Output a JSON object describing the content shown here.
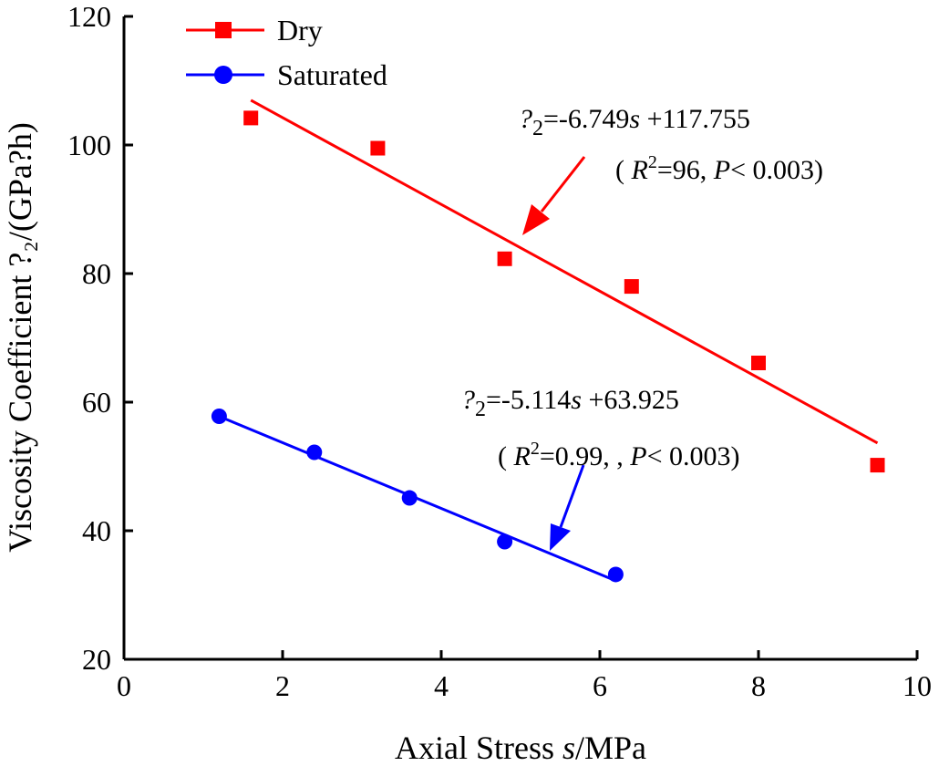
{
  "chart_data": {
    "type": "scatter",
    "xlabel_prefix": "Axial Stress ",
    "xlabel_var": "s",
    "xlabel_suffix": "/MPa",
    "ylabel": "Viscosity Coefficient ?₂/(GPa?h)",
    "xlim": [
      0,
      10
    ],
    "ylim": [
      20,
      120
    ],
    "xticks": [
      0,
      2,
      4,
      6,
      8,
      10
    ],
    "yticks": [
      20,
      40,
      60,
      80,
      100,
      120
    ],
    "legend_position": "top-left",
    "series": [
      {
        "name": "Dry",
        "color": "#ff0000",
        "marker": "square",
        "x": [
          1.6,
          3.2,
          4.8,
          6.4,
          8.0,
          9.5
        ],
        "y": [
          104.2,
          99.5,
          82.3,
          78.0,
          66.1,
          50.2
        ],
        "fit": {
          "slope": -6.749,
          "intercept": 117.755,
          "x_range": [
            1.6,
            9.5
          ]
        },
        "equation": {
          "lhs": "?",
          "sub": "2",
          "mid": "=-6.749",
          "var": "s",
          "rhs": " +117.755",
          "stats_open": "(  ",
          "r_var": "R",
          "r_sup": "2",
          "r_val": "=96,  ",
          "p_var": "P",
          "p_val": "< 0.003)"
        }
      },
      {
        "name": "Saturated",
        "color": "#0000ff",
        "marker": "circle",
        "x": [
          1.2,
          2.4,
          3.6,
          4.8,
          6.2
        ],
        "y": [
          57.8,
          52.2,
          45.1,
          38.3,
          33.2
        ],
        "fit": {
          "slope": -5.114,
          "intercept": 63.925,
          "x_range": [
            1.2,
            6.2
          ]
        },
        "equation": {
          "lhs": "?",
          "sub": "2",
          "mid": "=-5.114",
          "var": "s",
          "rhs": " +63.925",
          "stats_open": "(  ",
          "r_var": "R",
          "r_sup": "2",
          "r_val": "=0.99,  ,  ",
          "p_var": "P",
          "p_val": "< 0.003)"
        }
      }
    ]
  }
}
